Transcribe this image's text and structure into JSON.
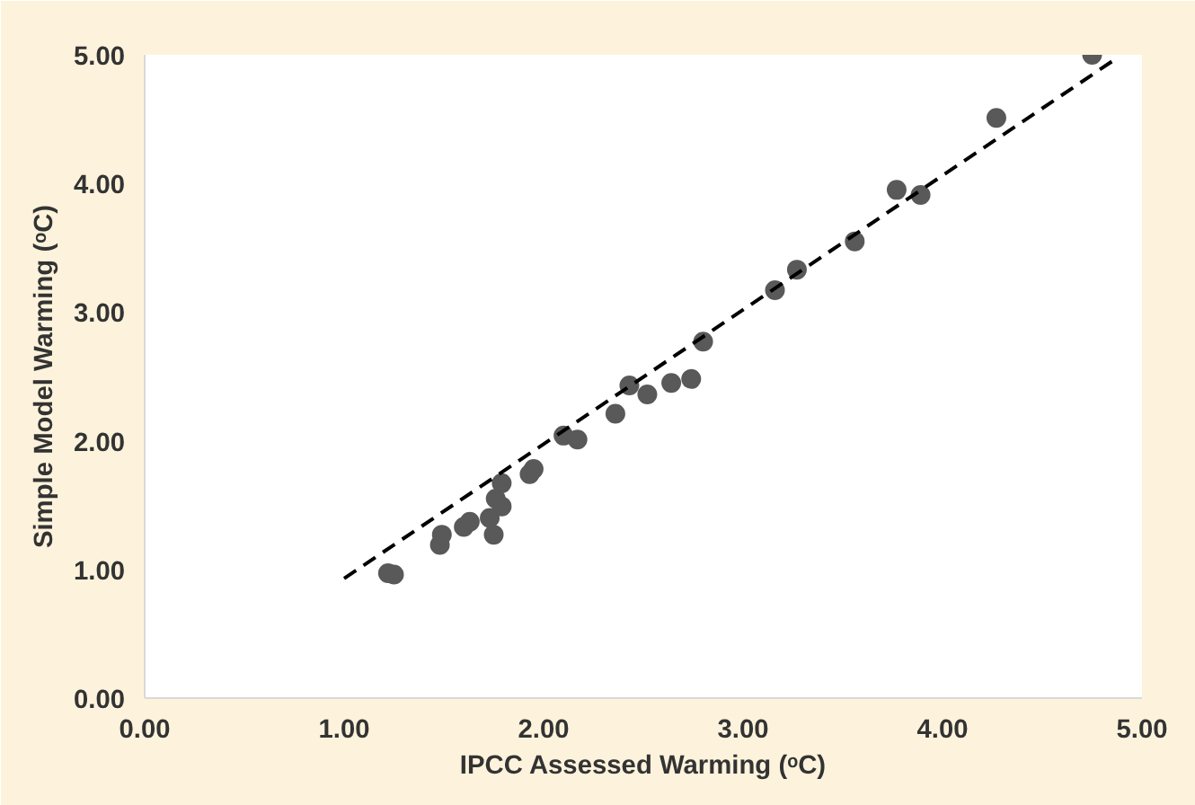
{
  "chart_data": {
    "type": "scatter",
    "xlabel": "IPCC Assessed Warming (ᵒC)",
    "ylabel": "Simple Model Warming (ᵒC)",
    "xlim": [
      0,
      5
    ],
    "ylim": [
      0,
      5
    ],
    "grid": false,
    "marker": "circle",
    "xticks": [
      {
        "value": 0,
        "label": "0.00"
      },
      {
        "value": 1,
        "label": "1.00"
      },
      {
        "value": 2,
        "label": "2.00"
      },
      {
        "value": 3,
        "label": "3.00"
      },
      {
        "value": 4,
        "label": "4.00"
      },
      {
        "value": 5,
        "label": "5.00"
      }
    ],
    "yticks": [
      {
        "value": 0,
        "label": "0.00"
      },
      {
        "value": 1,
        "label": "1.00"
      },
      {
        "value": 2,
        "label": "2.00"
      },
      {
        "value": 3,
        "label": "3.00"
      },
      {
        "value": 4,
        "label": "4.00"
      },
      {
        "value": 5,
        "label": "5.00"
      }
    ],
    "series": [
      {
        "color": "#595959",
        "x": [
          1.22,
          1.25,
          1.48,
          1.49,
          1.6,
          1.63,
          1.75,
          1.73,
          1.79,
          1.76,
          1.79,
          1.93,
          1.95,
          2.1,
          2.17,
          2.36,
          2.43,
          2.52,
          2.64,
          2.74,
          2.8,
          3.16,
          3.27,
          3.56,
          3.77,
          3.89,
          4.27,
          4.75
        ],
        "values": [
          0.97,
          0.96,
          1.19,
          1.27,
          1.33,
          1.37,
          1.27,
          1.4,
          1.49,
          1.55,
          1.67,
          1.74,
          1.78,
          2.04,
          2.01,
          2.21,
          2.43,
          2.36,
          2.45,
          2.48,
          2.77,
          3.17,
          3.33,
          3.55,
          3.95,
          3.91,
          4.51,
          5.0
        ]
      },
      {
        "type": "line",
        "color": "#000000",
        "line_style": "dashed",
        "marker": "none",
        "x": [
          1.0,
          4.87
        ],
        "values": [
          0.93,
          4.97
        ]
      }
    ]
  }
}
